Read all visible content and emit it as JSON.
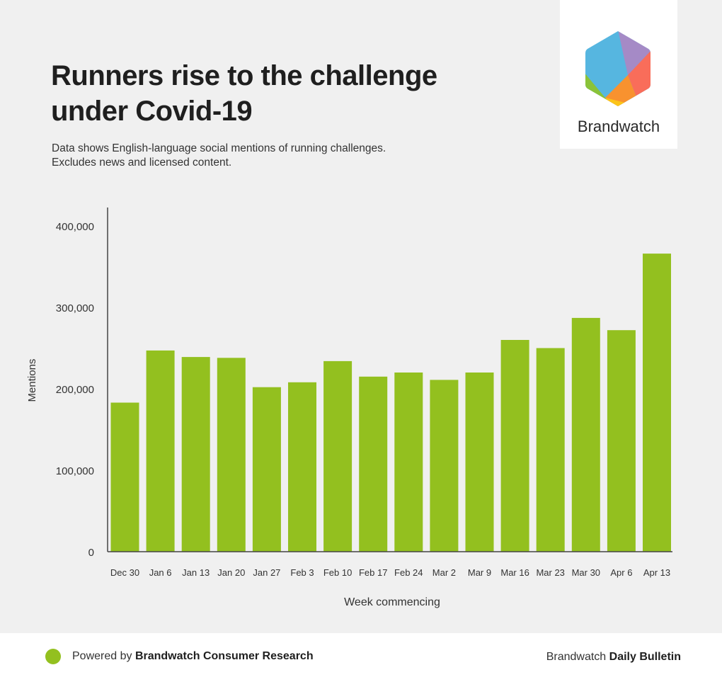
{
  "header": {
    "title": "Runners rise to the challenge under Covid-19",
    "subtitle_line1": "Data shows English-language social mentions of running challenges.",
    "subtitle_line2": "Excludes news and licensed content."
  },
  "logo": {
    "name": "Brandwatch",
    "icon": "brandwatch-hexagon-logo",
    "colors": [
      "#56b6e0",
      "#a58ac6",
      "#f96d5a",
      "#f8922f",
      "#fcc419",
      "#8ac339"
    ]
  },
  "chart_data": {
    "type": "bar",
    "xlabel": "Week commencing",
    "ylabel": "Mentions",
    "ylim": [
      0,
      420000
    ],
    "yticks": [
      0,
      100000,
      200000,
      300000,
      400000
    ],
    "ytick_labels": [
      "0",
      "100,000",
      "200,000",
      "300,000",
      "400,000"
    ],
    "grid": false,
    "bar_color": "#93c01f",
    "categories": [
      "Dec 30",
      "Jan 6",
      "Jan 13",
      "Jan 20",
      "Jan 27",
      "Feb 3",
      "Feb 10",
      "Feb 17",
      "Feb 24",
      "Mar 2",
      "Mar 9",
      "Mar 16",
      "Mar 23",
      "Mar 30",
      "Apr 6",
      "Apr 13"
    ],
    "values": [
      183000,
      247000,
      239000,
      238000,
      202000,
      208000,
      234000,
      215000,
      220000,
      211000,
      220000,
      260000,
      250000,
      287000,
      272000,
      366000
    ]
  },
  "footer": {
    "powered_prefix": "Powered by",
    "powered_brand": "Brandwatch Consumer Research",
    "right_prefix": "Brandwatch",
    "right_bold": "Daily Bulletin",
    "dot_color": "#93c01f"
  }
}
